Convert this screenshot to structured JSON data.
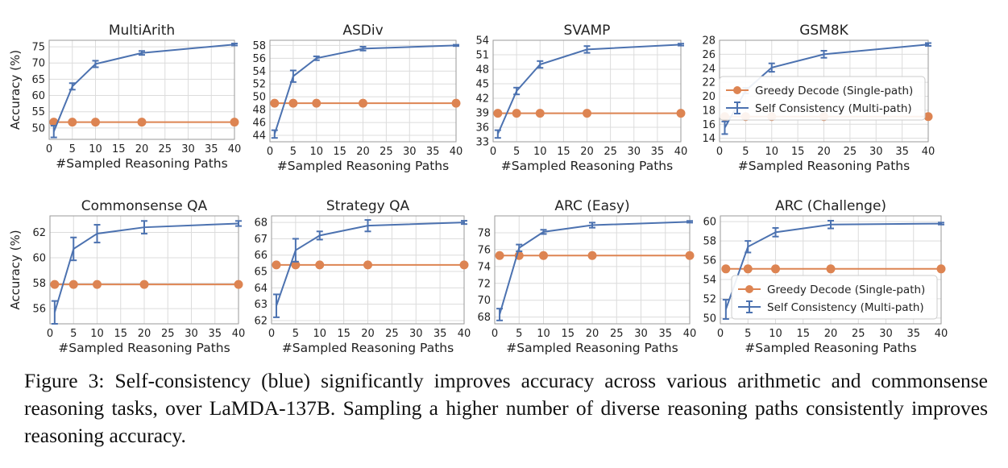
{
  "figure": {
    "caption": "Figure 3: Self-consistency (blue) significantly improves accuracy across various arithmetic and commonsense reasoning tasks, over LaMDA-137B. Sampling a higher number of diverse reasoning paths consistently improves reasoning accuracy."
  },
  "colors": {
    "greedy": "#DD8452",
    "self_consistency": "#4C72B0",
    "grid": "#dcdcdc",
    "frame": "#9a9a9a"
  },
  "legend_labels": {
    "greedy": "Greedy Decode (Single-path)",
    "self_consistency": "Self Consistency (Multi-path)"
  },
  "chart_data": [
    {
      "type": "line",
      "title": "MultiArith",
      "xlabel": "#Sampled Reasoning Paths",
      "ylabel": "Accuracy (%)",
      "xlim": [
        0,
        40
      ],
      "ylim": [
        46.5,
        77
      ],
      "xticks": [
        0,
        5,
        10,
        15,
        20,
        25,
        30,
        35,
        40
      ],
      "yticks": [
        50,
        55,
        60,
        65,
        70,
        75
      ],
      "x": [
        1,
        5,
        10,
        20,
        40
      ],
      "series": [
        {
          "name": "Greedy Decode (Single-path)",
          "values": [
            51.8,
            51.8,
            51.8,
            51.8,
            51.8
          ]
        },
        {
          "name": "Self Consistency (Multi-path)",
          "values": [
            48.9,
            62.8,
            69.7,
            73.1,
            75.7
          ],
          "err": [
            1.8,
            1.0,
            1.0,
            0.6,
            0.3
          ]
        }
      ],
      "legend": "none",
      "grid": true
    },
    {
      "type": "line",
      "title": "ASDiv",
      "xlabel": "#Sampled Reasoning Paths",
      "ylabel": "",
      "xlim": [
        0,
        40
      ],
      "ylim": [
        43,
        58.8
      ],
      "xticks": [
        0,
        5,
        10,
        15,
        20,
        25,
        30,
        35,
        40
      ],
      "yticks": [
        44,
        46,
        48,
        50,
        52,
        54,
        56,
        58
      ],
      "x": [
        1,
        5,
        10,
        20,
        40
      ],
      "series": [
        {
          "name": "Greedy Decode (Single-path)",
          "values": [
            49.0,
            49.0,
            49.0,
            49.0,
            49.0
          ]
        },
        {
          "name": "Self Consistency (Multi-path)",
          "values": [
            44.2,
            53.2,
            56.0,
            57.5,
            58.0
          ],
          "err": [
            0.6,
            0.9,
            0.3,
            0.3,
            0.1
          ]
        }
      ],
      "legend": "none",
      "grid": true
    },
    {
      "type": "line",
      "title": "SVAMP",
      "xlabel": "#Sampled Reasoning Paths",
      "ylabel": "",
      "xlim": [
        0,
        40
      ],
      "ylim": [
        33,
        54
      ],
      "xticks": [
        0,
        5,
        10,
        15,
        20,
        25,
        30,
        35,
        40
      ],
      "yticks": [
        33,
        36,
        39,
        42,
        45,
        48,
        51,
        54
      ],
      "x": [
        1,
        5,
        10,
        20,
        40
      ],
      "series": [
        {
          "name": "Greedy Decode (Single-path)",
          "values": [
            38.9,
            38.9,
            38.9,
            38.9,
            38.9
          ]
        },
        {
          "name": "Self Consistency (Multi-path)",
          "values": [
            34.6,
            43.5,
            49.0,
            52.1,
            53.1
          ],
          "err": [
            0.8,
            0.7,
            0.7,
            0.7,
            0.2
          ]
        }
      ],
      "legend": "none",
      "grid": true
    },
    {
      "type": "line",
      "title": "GSM8K",
      "xlabel": "#Sampled Reasoning Paths",
      "ylabel": "",
      "xlim": [
        0,
        40
      ],
      "ylim": [
        13.5,
        28
      ],
      "xticks": [
        0,
        5,
        10,
        15,
        20,
        25,
        30,
        35,
        40
      ],
      "yticks": [
        14,
        16,
        18,
        20,
        22,
        24,
        26,
        28
      ],
      "x": [
        1,
        5,
        10,
        20,
        40
      ],
      "series": [
        {
          "name": "Greedy Decode (Single-path)",
          "values": [
            17.1,
            17.1,
            17.1,
            17.1,
            17.1
          ]
        },
        {
          "name": "Self Consistency (Multi-path)",
          "values": [
            15.5,
            20.8,
            24.1,
            26.0,
            27.4
          ],
          "err": [
            0.9,
            0.4,
            0.6,
            0.5,
            0.2
          ]
        }
      ],
      "legend": "center-right",
      "grid": true
    },
    {
      "type": "line",
      "title": "Commonsense QA",
      "xlabel": "#Sampled Reasoning Paths",
      "ylabel": "Accuracy (%)",
      "xlim": [
        0,
        40
      ],
      "ylim": [
        54.8,
        63.3
      ],
      "xticks": [
        0,
        5,
        10,
        15,
        20,
        25,
        30,
        35,
        40
      ],
      "yticks": [
        56,
        58,
        60,
        62
      ],
      "x": [
        1,
        5,
        10,
        20,
        40
      ],
      "series": [
        {
          "name": "Greedy Decode (Single-path)",
          "values": [
            57.9,
            57.9,
            57.9,
            57.9,
            57.9
          ]
        },
        {
          "name": "Self Consistency (Multi-path)",
          "values": [
            55.7,
            60.7,
            61.9,
            62.4,
            62.7
          ],
          "err": [
            0.9,
            0.9,
            0.7,
            0.5,
            0.2
          ]
        }
      ],
      "legend": "none",
      "grid": true
    },
    {
      "type": "line",
      "title": "Strategy QA",
      "xlabel": "#Sampled Reasoning Paths",
      "ylabel": "",
      "xlim": [
        0,
        40
      ],
      "ylim": [
        61.8,
        68.4
      ],
      "xticks": [
        0,
        5,
        10,
        15,
        20,
        25,
        30,
        35,
        40
      ],
      "yticks": [
        62,
        63,
        64,
        65,
        66,
        67,
        68
      ],
      "x": [
        1,
        5,
        10,
        20,
        40
      ],
      "series": [
        {
          "name": "Greedy Decode (Single-path)",
          "values": [
            65.4,
            65.4,
            65.4,
            65.4,
            65.4
          ]
        },
        {
          "name": "Self Consistency (Multi-path)",
          "values": [
            62.9,
            66.3,
            67.2,
            67.8,
            68.0
          ],
          "err": [
            0.7,
            0.7,
            0.25,
            0.35,
            0.1
          ]
        }
      ],
      "legend": "none",
      "grid": true
    },
    {
      "type": "line",
      "title": "ARC (Easy)",
      "xlabel": "#Sampled Reasoning Paths",
      "ylabel": "",
      "xlim": [
        0,
        40
      ],
      "ylim": [
        67.2,
        80
      ],
      "xticks": [
        0,
        5,
        10,
        15,
        20,
        25,
        30,
        35,
        40
      ],
      "yticks": [
        68,
        70,
        72,
        74,
        76,
        78
      ],
      "x": [
        1,
        5,
        10,
        20,
        40
      ],
      "series": [
        {
          "name": "Greedy Decode (Single-path)",
          "values": [
            75.3,
            75.3,
            75.3,
            75.3,
            75.3
          ]
        },
        {
          "name": "Self Consistency (Multi-path)",
          "values": [
            68.3,
            76.2,
            78.1,
            78.9,
            79.3
          ],
          "err": [
            0.7,
            0.4,
            0.25,
            0.3,
            0.1
          ]
        }
      ],
      "legend": "none",
      "grid": true
    },
    {
      "type": "line",
      "title": "ARC (Challenge)",
      "xlabel": "#Sampled Reasoning Paths",
      "ylabel": "",
      "xlim": [
        0,
        40
      ],
      "ylim": [
        49.4,
        60.6
      ],
      "xticks": [
        0,
        5,
        10,
        15,
        20,
        25,
        30,
        35,
        40
      ],
      "yticks": [
        50,
        52,
        54,
        56,
        58,
        60
      ],
      "x": [
        1,
        5,
        10,
        20,
        40
      ],
      "series": [
        {
          "name": "Greedy Decode (Single-path)",
          "values": [
            55.1,
            55.1,
            55.1,
            55.1,
            55.1
          ]
        },
        {
          "name": "Self Consistency (Multi-path)",
          "values": [
            50.9,
            57.4,
            58.9,
            59.7,
            59.8
          ],
          "err": [
            1.0,
            0.6,
            0.45,
            0.4,
            0.1
          ]
        }
      ],
      "legend": "bottom-right",
      "grid": true
    }
  ]
}
